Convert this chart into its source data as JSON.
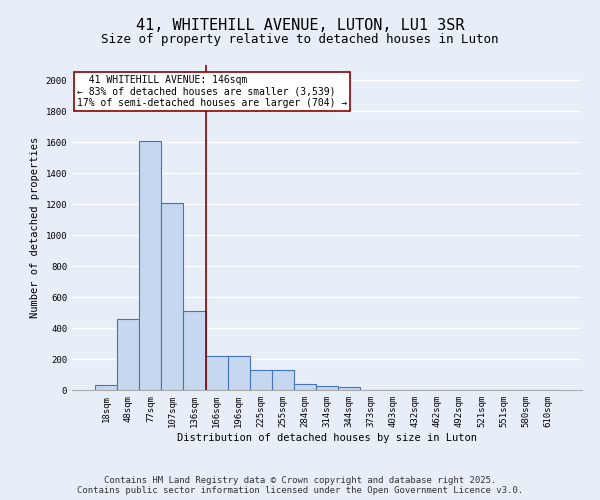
{
  "title1": "41, WHITEHILL AVENUE, LUTON, LU1 3SR",
  "title2": "Size of property relative to detached houses in Luton",
  "xlabel": "Distribution of detached houses by size in Luton",
  "ylabel": "Number of detached properties",
  "categories": [
    "18sqm",
    "48sqm",
    "77sqm",
    "107sqm",
    "136sqm",
    "166sqm",
    "196sqm",
    "225sqm",
    "255sqm",
    "284sqm",
    "314sqm",
    "344sqm",
    "373sqm",
    "403sqm",
    "432sqm",
    "462sqm",
    "492sqm",
    "521sqm",
    "551sqm",
    "580sqm",
    "610sqm"
  ],
  "values": [
    30,
    460,
    1610,
    1210,
    510,
    220,
    220,
    130,
    130,
    40,
    25,
    20,
    0,
    0,
    0,
    0,
    0,
    0,
    0,
    0,
    0
  ],
  "bar_color": "#c5d8f0",
  "bar_edge_color": "#4472c4",
  "background_color": "#e8eef8",
  "grid_color": "#ffffff",
  "vline_x": 4.5,
  "vline_color": "#8b0000",
  "annotation_line1": "  41 WHITEHILL AVENUE: 146sqm",
  "annotation_line2": "← 83% of detached houses are smaller (3,539)",
  "annotation_line3": "17% of semi-detached houses are larger (704) →",
  "annotation_box_color": "#8b0000",
  "annotation_fill": "#ffffff",
  "ylim": [
    0,
    2100
  ],
  "yticks": [
    0,
    200,
    400,
    600,
    800,
    1000,
    1200,
    1400,
    1600,
    1800,
    2000
  ],
  "footer1": "Contains HM Land Registry data © Crown copyright and database right 2025.",
  "footer2": "Contains public sector information licensed under the Open Government Licence v3.0.",
  "title_fontsize": 11,
  "subtitle_fontsize": 9,
  "label_fontsize": 7.5,
  "tick_fontsize": 6.5,
  "annotation_fontsize": 7,
  "footer_fontsize": 6.5
}
